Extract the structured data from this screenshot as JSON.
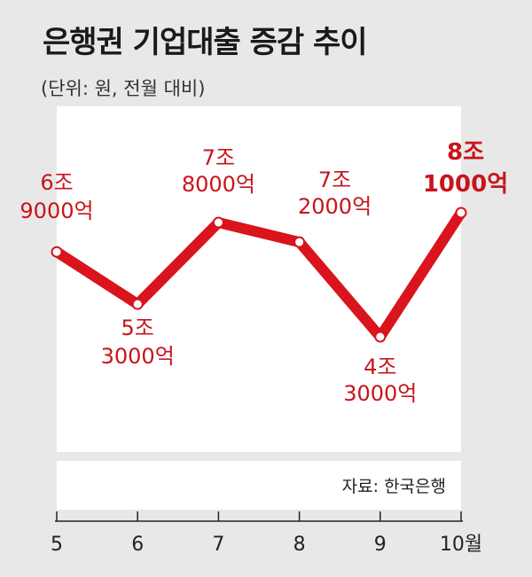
{
  "title": "은행권 기업대출 증감 추이",
  "subtitle": "(단위: 원, 전월 대비)",
  "source": "자료: 한국은행",
  "colors": {
    "line": "#d9141c",
    "label": "#c8141b",
    "axis": "#222222",
    "panel": "#ffffff",
    "background": "#e8e8e8"
  },
  "chart_data": {
    "type": "line",
    "title": "은행권 기업대출 증감 추이",
    "subtitle": "(단위: 원, 전월 대비)",
    "categories": [
      "5",
      "6",
      "7",
      "8",
      "9",
      "10월"
    ],
    "values": [
      69000,
      53000,
      78000,
      72000,
      43000,
      81000
    ],
    "unit": "억 원",
    "data_labels": [
      [
        "6조",
        "9000억"
      ],
      [
        "5조",
        "3000억"
      ],
      [
        "7조",
        "8000억"
      ],
      [
        "7조",
        "2000억"
      ],
      [
        "4조",
        "3000억"
      ],
      [
        "8조",
        "1000억"
      ]
    ],
    "highlight_index": 5,
    "grid": false,
    "legend": "none"
  }
}
